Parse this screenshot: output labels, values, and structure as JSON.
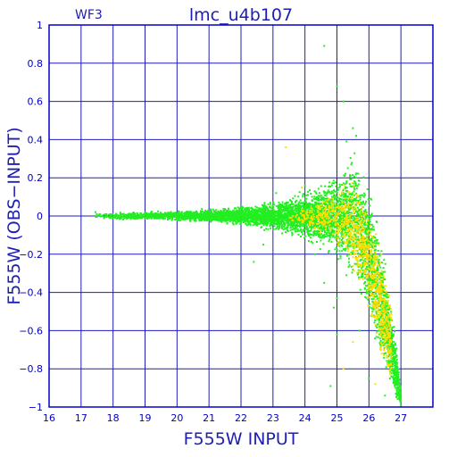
{
  "chart_data": {
    "type": "scatter",
    "title": "lmc_u4b107",
    "subtitle": "WF3",
    "xlabel": "F555W  INPUT",
    "ylabel": "F555W  (OBS−INPUT)",
    "xlim": [
      16,
      28
    ],
    "ylim": [
      -1,
      1
    ],
    "x_ticks": [
      "16",
      "17",
      "18",
      "19",
      "20",
      "21",
      "22",
      "23",
      "24",
      "25",
      "26",
      "27"
    ],
    "y_ticks": [
      "1",
      "0.8",
      "0.6",
      "0.4",
      "0.2",
      "0",
      "−0.2",
      "−0.4",
      "−0.6",
      "−0.8",
      "−1"
    ],
    "grid": true,
    "colors": {
      "axes": "#0000c8",
      "grid": "#1e1eb4",
      "primary": "#22ee22",
      "secondary": "#ffdd00"
    },
    "series": [
      {
        "color": "#22ee22",
        "envelope": {
          "x": [
            17.4,
            18,
            19,
            20,
            21,
            22,
            22.5,
            23,
            23.5,
            24,
            24.5,
            25,
            25.3,
            25.6,
            25.8,
            26.0,
            26.2,
            26.4,
            26.6,
            26.8,
            27.0
          ],
          "upper": [
            0.02,
            0.02,
            0.025,
            0.03,
            0.04,
            0.06,
            0.07,
            0.09,
            0.11,
            0.14,
            0.19,
            0.25,
            0.33,
            0.38,
            0.32,
            0.22,
            0.08,
            -0.1,
            -0.3,
            -0.55,
            -0.9
          ],
          "lower": [
            -0.02,
            -0.02,
            -0.025,
            -0.03,
            -0.04,
            -0.06,
            -0.07,
            -0.09,
            -0.11,
            -0.14,
            -0.19,
            -0.25,
            -0.33,
            -0.42,
            -0.5,
            -0.6,
            -0.7,
            -0.8,
            -0.9,
            -1.0,
            -1.0
          ]
        },
        "points": [
          [
            17.45,
            0.02
          ],
          [
            18.1,
            0.01
          ],
          [
            19.0,
            -0.01
          ],
          [
            20.0,
            0.0
          ],
          [
            21.0,
            0.01
          ],
          [
            22.0,
            -0.03
          ],
          [
            22.4,
            -0.24
          ],
          [
            22.7,
            -0.15
          ],
          [
            23.1,
            0.12
          ],
          [
            23.6,
            -0.1
          ],
          [
            24.0,
            0.16
          ],
          [
            24.3,
            -0.2
          ],
          [
            24.6,
            -0.35
          ],
          [
            24.9,
            -0.48
          ],
          [
            25.0,
            -0.43
          ],
          [
            25.2,
            0.6
          ],
          [
            25.3,
            0.39
          ],
          [
            25.5,
            0.46
          ],
          [
            25.6,
            0.42
          ],
          [
            25.7,
            -0.6
          ],
          [
            24.6,
            0.89
          ],
          [
            25.0,
            0.68
          ],
          [
            24.8,
            -0.89
          ],
          [
            25.0,
            -0.62
          ],
          [
            26.0,
            -0.85
          ],
          [
            26.5,
            -0.94
          ],
          [
            27.0,
            -0.99
          ]
        ]
      },
      {
        "color": "#ffdd00",
        "envelope": {
          "x": [
            23.5,
            24.5,
            25.3,
            25.8,
            26.1,
            26.4,
            26.7
          ],
          "upper": [
            0.0,
            0.12,
            0.22,
            0.16,
            0.05,
            -0.15,
            -0.4
          ],
          "lower": [
            -0.02,
            -0.12,
            -0.25,
            -0.45,
            -0.6,
            -0.8,
            -0.95
          ]
        },
        "points": [
          [
            23.4,
            0.36
          ],
          [
            23.9,
            0.15
          ],
          [
            25.2,
            -0.8
          ],
          [
            26.2,
            -0.88
          ],
          [
            26.4,
            -0.72
          ],
          [
            25.5,
            -0.66
          ],
          [
            26.6,
            -0.55
          ]
        ]
      }
    ]
  }
}
